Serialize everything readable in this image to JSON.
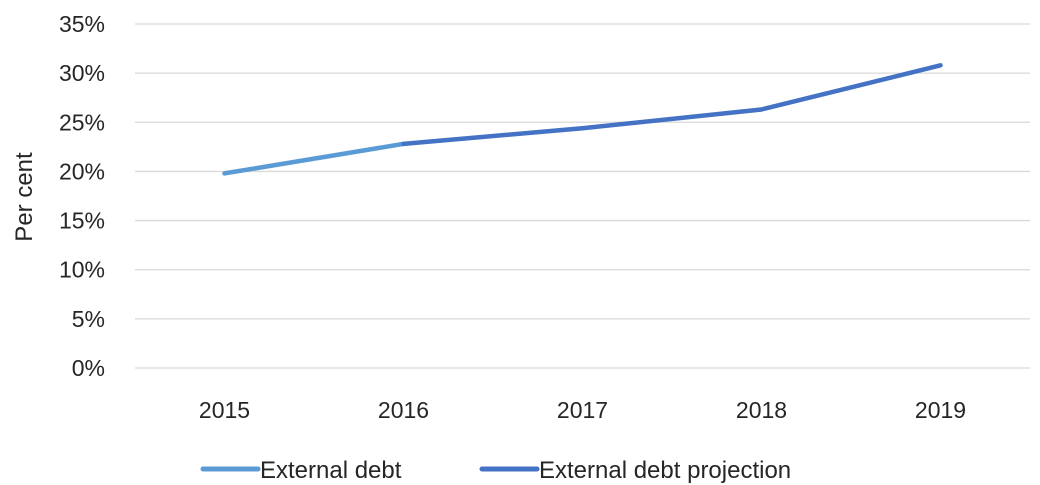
{
  "chart_data": {
    "type": "line",
    "title": "",
    "xlabel": "",
    "ylabel": "Per cent",
    "categories": [
      "2015",
      "2016",
      "2017",
      "2018",
      "2019"
    ],
    "ylim": [
      0,
      35
    ],
    "yticks": [
      0,
      5,
      10,
      15,
      20,
      25,
      30,
      35
    ],
    "ytick_labels": [
      "0%",
      "5%",
      "10%",
      "15%",
      "20%",
      "25%",
      "30%",
      "35%"
    ],
    "grid": true,
    "legend_position": "bottom",
    "series": [
      {
        "name": "External debt",
        "color": "#5B9BD5",
        "values": [
          19.8,
          22.8,
          null,
          null,
          null
        ]
      },
      {
        "name": "External debt projection",
        "color": "#4472C4",
        "values": [
          null,
          22.8,
          24.4,
          26.3,
          30.8
        ]
      }
    ]
  }
}
